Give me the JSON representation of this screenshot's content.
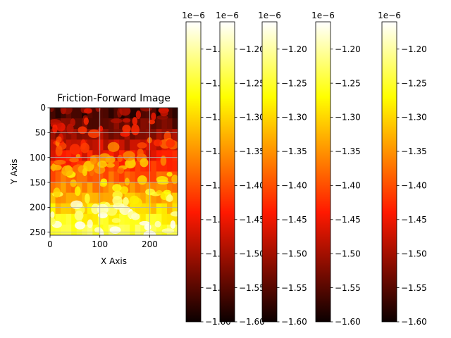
{
  "chart_data": {
    "type": "heatmap",
    "title": "Friction-Forward Image",
    "xlabel": "X Axis",
    "ylabel": "Y Axis",
    "xlim": [
      0,
      256
    ],
    "ylim": [
      256,
      0
    ],
    "grid": true,
    "x_ticks": [
      "0",
      "100",
      "200"
    ],
    "y_ticks": [
      "0",
      "50",
      "100",
      "150",
      "200",
      "250"
    ],
    "colormap": "hot",
    "colormap_stops": [
      "#0b0000",
      "#ff1900",
      "#ffff00",
      "#ffffff"
    ],
    "pattern": "bright blob-like features on a dark red background; mean intensity increases from top (dark) to bottom (bright yellow-white)",
    "row_means": [
      -1.57,
      -1.54,
      -1.51,
      -1.48,
      -1.45,
      -1.42,
      -1.39,
      -1.36,
      -1.33,
      -1.3,
      -1.27,
      -1.24
    ],
    "colorbars": [
      {
        "offset": "1e−6",
        "ticks": [
          "−1.20",
          "−1.25",
          "−1.30",
          "−1.35",
          "−1.40",
          "−1.45",
          "−1.50",
          "−1.55",
          "−1.60"
        ],
        "vmin": -1.6,
        "vmax": -1.16
      },
      {
        "offset": "1e−6",
        "ticks": [
          "−1.20",
          "−1.25",
          "−1.30",
          "−1.35",
          "−1.40",
          "−1.45",
          "−1.50",
          "−1.55",
          "−1.60"
        ],
        "vmin": -1.6,
        "vmax": -1.16
      },
      {
        "offset": "1e−6",
        "ticks": [
          "−1.20",
          "−1.25",
          "−1.30",
          "−1.35",
          "−1.40",
          "−1.45",
          "−1.50",
          "−1.55",
          "−1.60"
        ],
        "vmin": -1.6,
        "vmax": -1.16
      },
      {
        "offset": "1e−6",
        "ticks": [
          "−1.20",
          "−1.25",
          "−1.30",
          "−1.35",
          "−1.40",
          "−1.45",
          "−1.50",
          "−1.55",
          "−1.60"
        ],
        "vmin": -1.6,
        "vmax": -1.16
      },
      {
        "offset": "1e−6",
        "ticks": [
          "−1.20",
          "−1.25",
          "−1.30",
          "−1.35",
          "−1.40",
          "−1.45",
          "−1.50",
          "−1.55",
          "−1.60"
        ],
        "vmin": -1.6,
        "vmax": -1.16
      }
    ]
  }
}
